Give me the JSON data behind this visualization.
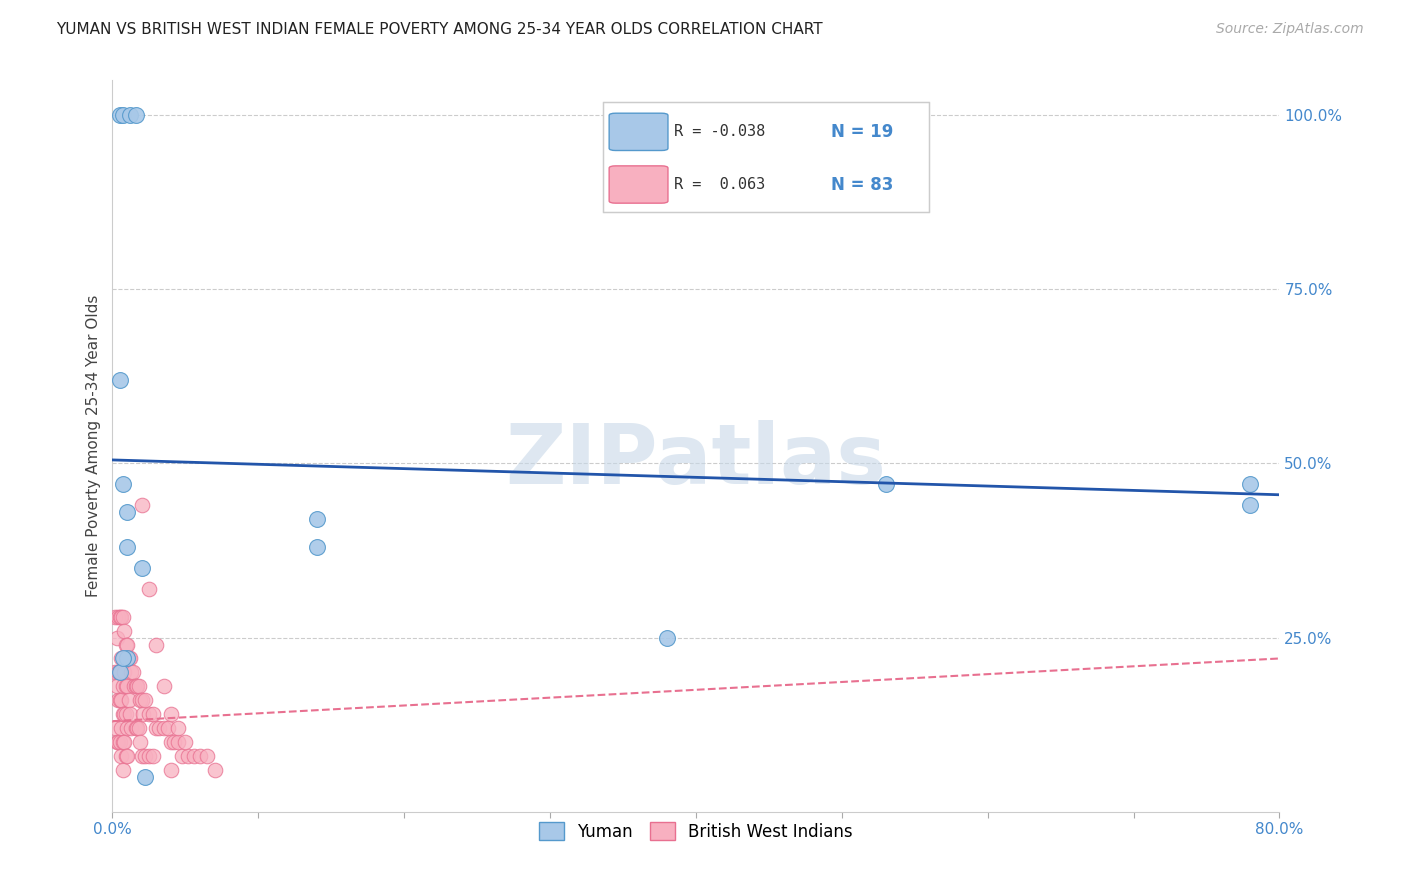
{
  "title": "YUMAN VS BRITISH WEST INDIAN FEMALE POVERTY AMONG 25-34 YEAR OLDS CORRELATION CHART",
  "source": "Source: ZipAtlas.com",
  "ylabel": "Female Poverty Among 25-34 Year Olds",
  "xlim": [
    0.0,
    0.8
  ],
  "ylim": [
    0.0,
    1.05
  ],
  "xticks": [
    0.0,
    0.1,
    0.2,
    0.3,
    0.4,
    0.5,
    0.6,
    0.7,
    0.8
  ],
  "xticklabels": [
    "0.0%",
    "",
    "",
    "",
    "",
    "",
    "",
    "",
    "80.0%"
  ],
  "yticks_right": [
    0.25,
    0.5,
    0.75,
    1.0
  ],
  "yticklabels_right": [
    "25.0%",
    "50.0%",
    "75.0%",
    "100.0%"
  ],
  "background_color": "#ffffff",
  "watermark": "ZIPatlas",
  "yuman_color": "#a8c8e8",
  "bwi_color": "#f8b0c0",
  "yuman_edge_color": "#5599cc",
  "bwi_edge_color": "#e87090",
  "yuman_line_color": "#2255aa",
  "bwi_line_color": "#e87090",
  "legend_r_yuman": "R = -0.038",
  "legend_n_yuman": "N = 19",
  "legend_r_bwi": "R =  0.063",
  "legend_n_bwi": "N = 83",
  "yuman_scatter_x": [
    0.005,
    0.007,
    0.012,
    0.016,
    0.005,
    0.007,
    0.01,
    0.01,
    0.01,
    0.02,
    0.14,
    0.14,
    0.38,
    0.53,
    0.78,
    0.78,
    0.005,
    0.007,
    0.022
  ],
  "yuman_scatter_y": [
    1.0,
    1.0,
    1.0,
    1.0,
    0.62,
    0.47,
    0.43,
    0.38,
    0.22,
    0.35,
    0.42,
    0.38,
    0.25,
    0.47,
    0.47,
    0.44,
    0.2,
    0.22,
    0.05
  ],
  "bwi_scatter_x": [
    0.002,
    0.002,
    0.002,
    0.003,
    0.003,
    0.003,
    0.004,
    0.004,
    0.004,
    0.004,
    0.005,
    0.005,
    0.005,
    0.005,
    0.006,
    0.006,
    0.006,
    0.006,
    0.006,
    0.007,
    0.007,
    0.007,
    0.007,
    0.007,
    0.007,
    0.008,
    0.008,
    0.008,
    0.008,
    0.009,
    0.009,
    0.009,
    0.009,
    0.01,
    0.01,
    0.01,
    0.01,
    0.011,
    0.011,
    0.012,
    0.012,
    0.013,
    0.013,
    0.014,
    0.015,
    0.016,
    0.016,
    0.017,
    0.017,
    0.018,
    0.018,
    0.019,
    0.019,
    0.02,
    0.02,
    0.021,
    0.022,
    0.022,
    0.025,
    0.025,
    0.028,
    0.028,
    0.03,
    0.032,
    0.035,
    0.038,
    0.04,
    0.04,
    0.042,
    0.045,
    0.048,
    0.052,
    0.056,
    0.06,
    0.065,
    0.07,
    0.02,
    0.025,
    0.03,
    0.035,
    0.04,
    0.045,
    0.05
  ],
  "bwi_scatter_y": [
    0.28,
    0.2,
    0.12,
    0.25,
    0.18,
    0.1,
    0.28,
    0.2,
    0.16,
    0.1,
    0.28,
    0.2,
    0.16,
    0.1,
    0.28,
    0.22,
    0.16,
    0.12,
    0.08,
    0.28,
    0.22,
    0.18,
    0.14,
    0.1,
    0.06,
    0.26,
    0.2,
    0.14,
    0.1,
    0.24,
    0.18,
    0.14,
    0.08,
    0.24,
    0.18,
    0.12,
    0.08,
    0.22,
    0.16,
    0.22,
    0.14,
    0.2,
    0.12,
    0.2,
    0.18,
    0.18,
    0.12,
    0.18,
    0.12,
    0.18,
    0.12,
    0.16,
    0.1,
    0.16,
    0.08,
    0.14,
    0.16,
    0.08,
    0.14,
    0.08,
    0.14,
    0.08,
    0.12,
    0.12,
    0.12,
    0.12,
    0.1,
    0.06,
    0.1,
    0.1,
    0.08,
    0.08,
    0.08,
    0.08,
    0.08,
    0.06,
    0.44,
    0.32,
    0.24,
    0.18,
    0.14,
    0.12,
    0.1
  ],
  "yuman_trend_x": [
    0.0,
    0.8
  ],
  "yuman_trend_y": [
    0.505,
    0.455
  ],
  "bwi_trend_x": [
    0.0,
    0.8
  ],
  "bwi_trend_y": [
    0.13,
    0.22
  ]
}
